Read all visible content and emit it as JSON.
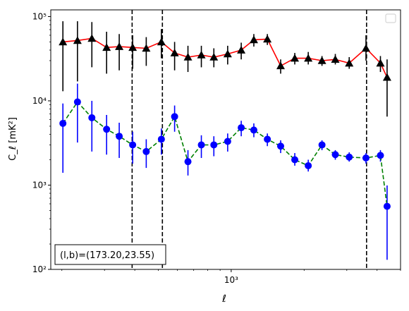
{
  "chart_data": {
    "type": "scatter",
    "x_scale": "log",
    "y_scale": "log",
    "xlim": [
      180,
      5000
    ],
    "ylim": [
      100,
      120000
    ],
    "xlabel": "ℓ",
    "ylabel": "C_ℓ  [mK²]",
    "x_tick_labels": [
      {
        "value": 1000,
        "label": "10³"
      }
    ],
    "y_tick_labels": [
      {
        "value": 100,
        "label": "10²"
      },
      {
        "value": 1000,
        "label": "10³"
      },
      {
        "value": 10000,
        "label": "10⁴"
      },
      {
        "value": 100000,
        "label": "10⁵"
      }
    ],
    "legend": {
      "location": "upper right",
      "entries": []
    },
    "vertical_lines": [
      390,
      520,
      3620
    ],
    "annotation": {
      "text": "(l,b)=(173.20,23.55)",
      "location": "lower left"
    },
    "series": [
      {
        "marker": "triangle",
        "marker_color": "#000000",
        "line_color": "#ff0000",
        "line_style": "solid",
        "points": [
          {
            "x": 202,
            "y": 50000,
            "lo": 13000,
            "hi": 88000
          },
          {
            "x": 232,
            "y": 52000,
            "lo": 17000,
            "hi": 88000
          },
          {
            "x": 266,
            "y": 55000,
            "lo": 25000,
            "hi": 86000
          },
          {
            "x": 306,
            "y": 43000,
            "lo": 21000,
            "hi": 66000
          },
          {
            "x": 345,
            "y": 44000,
            "lo": 23000,
            "hi": 62000
          },
          {
            "x": 392,
            "y": 43000,
            "lo": 24000,
            "hi": 60000
          },
          {
            "x": 446,
            "y": 42000,
            "lo": 26000,
            "hi": 57000
          },
          {
            "x": 515,
            "y": 50000,
            "lo": 32000,
            "hi": 71000
          },
          {
            "x": 584,
            "y": 37000,
            "lo": 23000,
            "hi": 50000
          },
          {
            "x": 663,
            "y": 33000,
            "lo": 22000,
            "hi": 45000
          },
          {
            "x": 753,
            "y": 35000,
            "lo": 25000,
            "hi": 45000
          },
          {
            "x": 848,
            "y": 33000,
            "lo": 25000,
            "hi": 42000
          },
          {
            "x": 967,
            "y": 36000,
            "lo": 27000,
            "hi": 45000
          },
          {
            "x": 1100,
            "y": 40000,
            "lo": 31000,
            "hi": 49000
          },
          {
            "x": 1240,
            "y": 53000,
            "lo": 44000,
            "hi": 62000
          },
          {
            "x": 1410,
            "y": 54000,
            "lo": 46000,
            "hi": 62000
          },
          {
            "x": 1600,
            "y": 26000,
            "lo": 21000,
            "hi": 31000
          },
          {
            "x": 1830,
            "y": 32000,
            "lo": 27000,
            "hi": 37000
          },
          {
            "x": 2080,
            "y": 32000,
            "lo": 27000,
            "hi": 38000
          },
          {
            "x": 2370,
            "y": 30000,
            "lo": 26000,
            "hi": 34000
          },
          {
            "x": 2690,
            "y": 31000,
            "lo": 27000,
            "hi": 36000
          },
          {
            "x": 3070,
            "y": 28000,
            "lo": 24000,
            "hi": 33000
          },
          {
            "x": 3600,
            "y": 42000,
            "lo": 30000,
            "hi": 60000
          },
          {
            "x": 4130,
            "y": 28000,
            "lo": 22000,
            "hi": 34000
          },
          {
            "x": 4400,
            "y": 19000,
            "lo": 6500,
            "hi": 31000
          }
        ]
      },
      {
        "marker": "circle",
        "marker_color": "#0000ff",
        "line_color": "#008000",
        "line_style": "dashed",
        "points": [
          {
            "x": 202,
            "y": 5400,
            "lo": 1400,
            "hi": 9300
          },
          {
            "x": 232,
            "y": 9700,
            "lo": 3200,
            "hi": 16000
          },
          {
            "x": 266,
            "y": 6300,
            "lo": 2500,
            "hi": 10000
          },
          {
            "x": 306,
            "y": 4600,
            "lo": 2300,
            "hi": 6800
          },
          {
            "x": 345,
            "y": 3800,
            "lo": 2100,
            "hi": 5500
          },
          {
            "x": 392,
            "y": 3000,
            "lo": 1800,
            "hi": 4300
          },
          {
            "x": 446,
            "y": 2500,
            "lo": 1600,
            "hi": 3500
          },
          {
            "x": 515,
            "y": 3500,
            "lo": 2300,
            "hi": 4700
          },
          {
            "x": 584,
            "y": 6500,
            "lo": 4300,
            "hi": 8800
          },
          {
            "x": 663,
            "y": 1900,
            "lo": 1300,
            "hi": 2600
          },
          {
            "x": 753,
            "y": 3000,
            "lo": 2100,
            "hi": 3900
          },
          {
            "x": 848,
            "y": 3000,
            "lo": 2200,
            "hi": 3800
          },
          {
            "x": 967,
            "y": 3300,
            "lo": 2500,
            "hi": 4100
          },
          {
            "x": 1100,
            "y": 4800,
            "lo": 3800,
            "hi": 5800
          },
          {
            "x": 1240,
            "y": 4500,
            "lo": 3700,
            "hi": 5400
          },
          {
            "x": 1410,
            "y": 3500,
            "lo": 2900,
            "hi": 4100
          },
          {
            "x": 1600,
            "y": 2900,
            "lo": 2400,
            "hi": 3400
          },
          {
            "x": 1830,
            "y": 2000,
            "lo": 1700,
            "hi": 2400
          },
          {
            "x": 2080,
            "y": 1700,
            "lo": 1450,
            "hi": 2000
          },
          {
            "x": 2370,
            "y": 3000,
            "lo": 2600,
            "hi": 3400
          },
          {
            "x": 2690,
            "y": 2300,
            "lo": 2000,
            "hi": 2600
          },
          {
            "x": 3070,
            "y": 2150,
            "lo": 1900,
            "hi": 2450
          },
          {
            "x": 3600,
            "y": 2100,
            "lo": 1800,
            "hi": 2400
          },
          {
            "x": 4130,
            "y": 2250,
            "lo": 1900,
            "hi": 2600
          },
          {
            "x": 4400,
            "y": 560,
            "lo": 130,
            "hi": 990
          }
        ]
      }
    ]
  }
}
